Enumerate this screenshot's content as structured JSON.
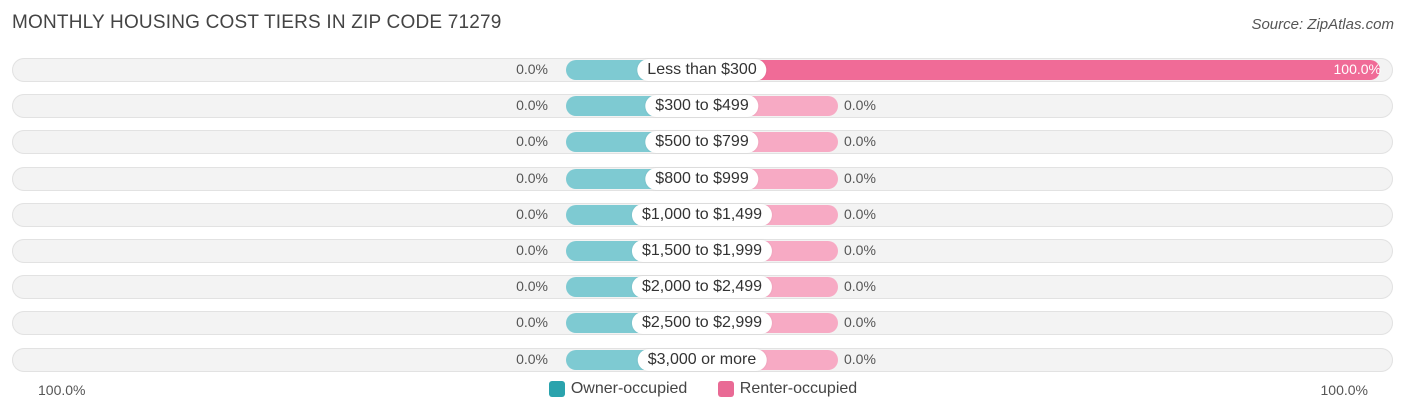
{
  "title": "MONTHLY HOUSING COST TIERS IN ZIP CODE 71279",
  "source": "Source: ZipAtlas.com",
  "colors": {
    "owner": "#7ecad2",
    "renter": "#f7aac4",
    "renter_full": "#f06b97"
  },
  "legend": {
    "owner": "Owner-occupied",
    "renter": "Renter-occupied"
  },
  "axis": {
    "left": "100.0%",
    "right": "100.0%"
  },
  "chart_data": {
    "type": "bar",
    "title": "MONTHLY HOUSING COST TIERS IN ZIP CODE 71279",
    "categories": [
      "Less than $300",
      "$300 to $499",
      "$500 to $799",
      "$800 to $999",
      "$1,000 to $1,499",
      "$1,500 to $1,999",
      "$2,000 to $2,499",
      "$2,500 to $2,999",
      "$3,000 or more"
    ],
    "series": [
      {
        "name": "Owner-occupied",
        "values": [
          0.0,
          0.0,
          0.0,
          0.0,
          0.0,
          0.0,
          0.0,
          0.0,
          0.0
        ]
      },
      {
        "name": "Renter-occupied",
        "values": [
          100.0,
          0.0,
          0.0,
          0.0,
          0.0,
          0.0,
          0.0,
          0.0,
          0.0
        ]
      }
    ],
    "owner_labels": [
      "0.0%",
      "0.0%",
      "0.0%",
      "0.0%",
      "0.0%",
      "0.0%",
      "0.0%",
      "0.0%",
      "0.0%"
    ],
    "renter_labels": [
      "100.0%",
      "0.0%",
      "0.0%",
      "0.0%",
      "0.0%",
      "0.0%",
      "0.0%",
      "0.0%",
      "0.0%"
    ],
    "xlim": [
      -100,
      100
    ],
    "legend_position": "bottom-center"
  }
}
